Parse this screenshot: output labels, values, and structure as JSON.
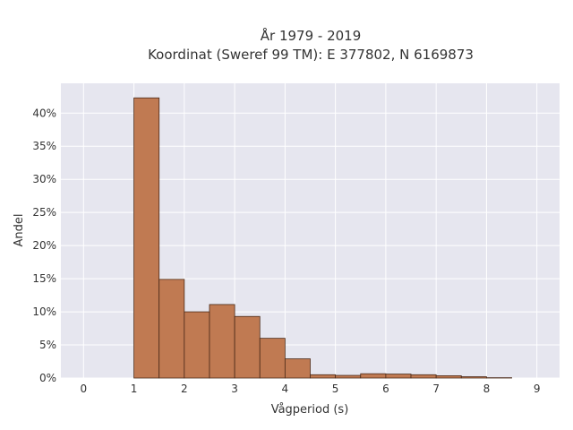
{
  "chart_data": {
    "type": "bar",
    "title_line1": "År 1979 - 2019",
    "title_line2": "Koordinat (Sweref 99 TM): E 377802, N 6169873",
    "xlabel": "Vågperiod (s)",
    "ylabel": "Andel",
    "bin_width": 0.5,
    "bin_starts": [
      1.0,
      1.5,
      2.0,
      2.5,
      3.0,
      3.5,
      4.0,
      4.5,
      5.0,
      5.5,
      6.0,
      6.5,
      7.0,
      7.5,
      8.0
    ],
    "values": [
      42.3,
      14.9,
      10.0,
      11.1,
      9.3,
      6.0,
      2.9,
      0.5,
      0.4,
      0.65,
      0.6,
      0.5,
      0.35,
      0.2,
      0.05
    ],
    "xlim": [
      -0.45,
      9.45
    ],
    "ylim": [
      0,
      44.5
    ],
    "xticks": [
      0,
      1,
      2,
      3,
      4,
      5,
      6,
      7,
      8,
      9
    ],
    "xtick_labels": [
      "0",
      "1",
      "2",
      "3",
      "4",
      "5",
      "6",
      "7",
      "8",
      "9"
    ],
    "yticks": [
      0,
      5,
      10,
      15,
      20,
      25,
      30,
      35,
      40
    ],
    "ytick_labels": [
      "0%",
      "5%",
      "10%",
      "15%",
      "20%",
      "25%",
      "30%",
      "35%",
      "40%"
    ],
    "grid": true,
    "legend": "none",
    "colors": {
      "bar_fill": "#c07a52",
      "bar_stroke": "#4a2a18",
      "plot_background": "#e6e6ef",
      "grid": "#ffffff"
    }
  }
}
